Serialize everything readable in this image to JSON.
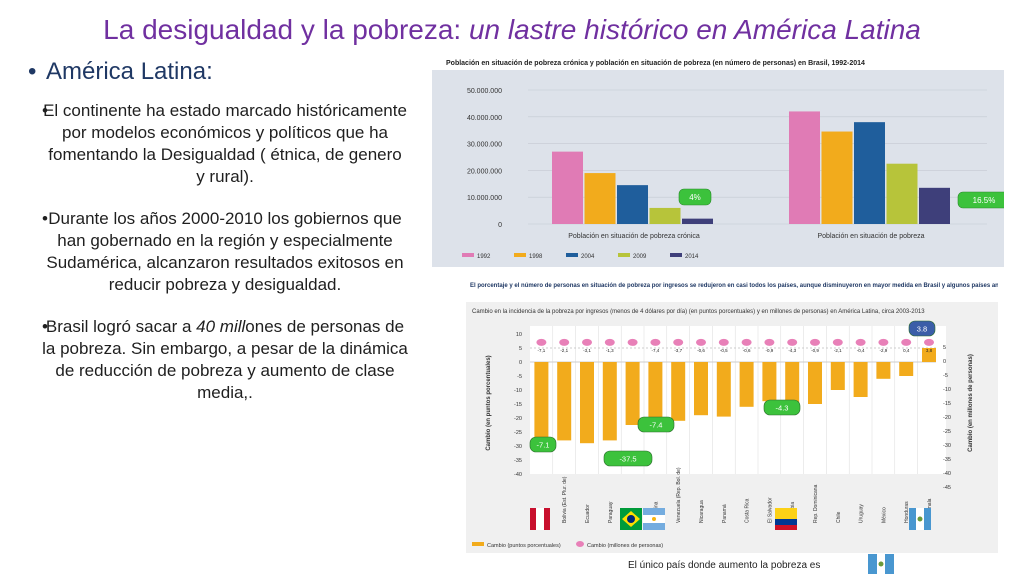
{
  "slide": {
    "title_main": "La desigualdad y la pobreza:",
    "title_italic": "un lastre histórico en América Latina",
    "heading": "América Latina:",
    "bullet1": "El continente  ha estado marcado históricamente por modelos económicos y políticos que ha fomentando la Desigualdad ( étnica, de genero y rural).",
    "bullet2": "Durante los años 2000-2010  los gobiernos que han gobernado en la región y especialmente Sudamérica, alcanzaron resultados exitosos en reducir pobreza y desigualdad.",
    "bullet3_pre": "Brasil logró sacar a ",
    "bullet3_italic": "40 mill",
    "bullet3_post": "ones de personas de la pobreza.  Sin embargo,  a pesar de la dinámica de reducción de pobreza y aumento de clase media,.",
    "footnote": "El único país donde aumento la pobreza es",
    "colors": {
      "title": "#7030a0",
      "heading": "#1f3864"
    }
  },
  "chart_data": [
    {
      "type": "bar",
      "title": "Población en situación de pobreza crónica y población en situación de pobreza (en número de personas) en Brasil, 1992-2014",
      "categories": [
        "Población en situación de pobreza crónica",
        "Población en situación de pobreza"
      ],
      "series": [
        {
          "name": "1992",
          "color": "#e07bb5",
          "values": [
            27000000,
            42000000
          ]
        },
        {
          "name": "1998",
          "color": "#f2ab1c",
          "values": [
            19000000,
            34500000
          ]
        },
        {
          "name": "2004",
          "color": "#1f5e9c",
          "values": [
            14500000,
            38000000
          ]
        },
        {
          "name": "2009",
          "color": "#b7c43a",
          "values": [
            6000000,
            22500000
          ]
        },
        {
          "name": "2014",
          "color": "#3e3f7a",
          "values": [
            2000000,
            13500000
          ]
        }
      ],
      "yticks": [
        "0",
        "10.000.000",
        "20.000.000",
        "30.000.000",
        "40.000.000",
        "50.000.000"
      ],
      "ylim": [
        0,
        50000000
      ],
      "annotations": [
        "4%",
        "16.5%"
      ],
      "legend": "bottom"
    },
    {
      "type": "bar",
      "title": "El porcentaje y el número de personas en situación de pobreza por ingresos se redujeron en casi todos los países, aunque disminuyeron en mayor medida en Brasil y algunos países andinos",
      "subtitle": "Cambio en la incidencia de la pobreza por ingresos (menos de 4 dólares por día) (en puntos porcentuales) y en millones de personas) en América Latina, circa 2003-2013",
      "ylabel_left": "Cambio (en puntos porcentuales)",
      "ylabel_right": "Cambio (en millones de personas)",
      "categories": [
        "Perú",
        "Bolivia (Est. Plur. de)",
        "Ecuador",
        "Paraguay",
        "Brasil",
        "Argentina",
        "Venezuela (Rep. Bol. de)",
        "Nicaragua",
        "Panamá",
        "Costa Rica",
        "El Salvador",
        "Colombia",
        "Rep. Dominicana",
        "Chile",
        "Uruguay",
        "México",
        "Honduras",
        "Guatemala"
      ],
      "series": [
        {
          "name": "Cambio (puntos porcentuales)",
          "color": "#f2ab1c",
          "values": [
            -30,
            -28,
            -29,
            -28,
            -22.5,
            -23,
            -21,
            -19,
            -19.5,
            -16,
            -14,
            -16,
            -15,
            -10,
            -12.5,
            -6,
            -5,
            5
          ]
        },
        {
          "name": "Cambio (millones de personas)",
          "color": "#e880b8",
          "values": [
            -7.1,
            -2.1,
            -3.1,
            -1.3,
            -37.5,
            -7.4,
            -3.7,
            -0.6,
            -0.5,
            -0.6,
            -0.9,
            -4.3,
            -0.9,
            -2.1,
            -0.4,
            -2.9,
            0.4,
            3.8
          ]
        }
      ],
      "data_labels": [
        "-7,1",
        "-2,1",
        "-3,1",
        "-1,3",
        "",
        "-7,4",
        "-3,7",
        "-0,6",
        "-0,5",
        "-0,6",
        "-0,9",
        "-4,3",
        "-0,9",
        "-2,1",
        "-0,4",
        "-2,9",
        "0,4",
        "3,8"
      ],
      "yticks_left": [
        "10",
        "5",
        "0",
        "-5",
        "-10",
        "-15",
        "-20",
        "-25",
        "-30",
        "-35",
        "-40"
      ],
      "yticks_right": [
        "5",
        "0",
        "-5",
        "-10",
        "-15",
        "-20",
        "-25",
        "-30",
        "-35",
        "-40",
        "-45"
      ],
      "ylim": [
        -40,
        10
      ],
      "callouts": [
        "-7.1",
        "-37.5",
        "-7.4",
        "-4.3",
        "3.8"
      ],
      "legend": "bottom"
    }
  ]
}
